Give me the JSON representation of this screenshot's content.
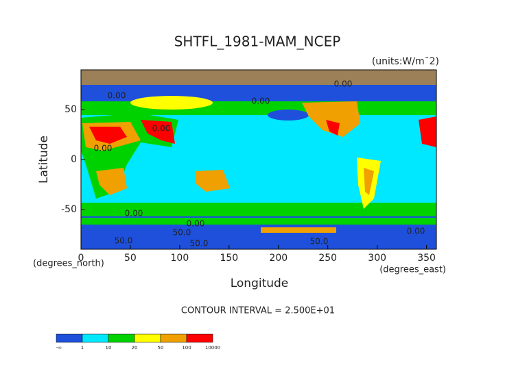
{
  "chart_data": {
    "type": "contour",
    "title": "SHTFL_1981-MAM_NCEP",
    "units": "(units:W/m¯2)",
    "x_label": "Longitude",
    "y_label": "Latitude",
    "x_unit": "(degrees_east)",
    "y_unit": "(degrees_north)",
    "note": "CONTOUR INTERVAL = 2.500E+01",
    "xlim": [
      0,
      360
    ],
    "ylim": [
      -90,
      90
    ],
    "xticks": [
      0,
      50,
      100,
      150,
      200,
      250,
      300,
      350
    ],
    "yticks": [
      -50,
      0,
      50
    ],
    "contour_labels": [
      "0.00",
      "0.00",
      "0.00",
      "0.00",
      "0.00",
      "0.00",
      "0.00",
      "0.00",
      "50.0",
      "50.0",
      "50.0",
      "50.0"
    ],
    "colorbar": {
      "levels": [
        "-∞",
        "1",
        "10",
        "20",
        "50",
        "100",
        "10000"
      ],
      "colors": [
        "#1e50dc",
        "#00e8ff",
        "#00d200",
        "#ffff00",
        "#f0a000",
        "#ff0000"
      ]
    }
  }
}
